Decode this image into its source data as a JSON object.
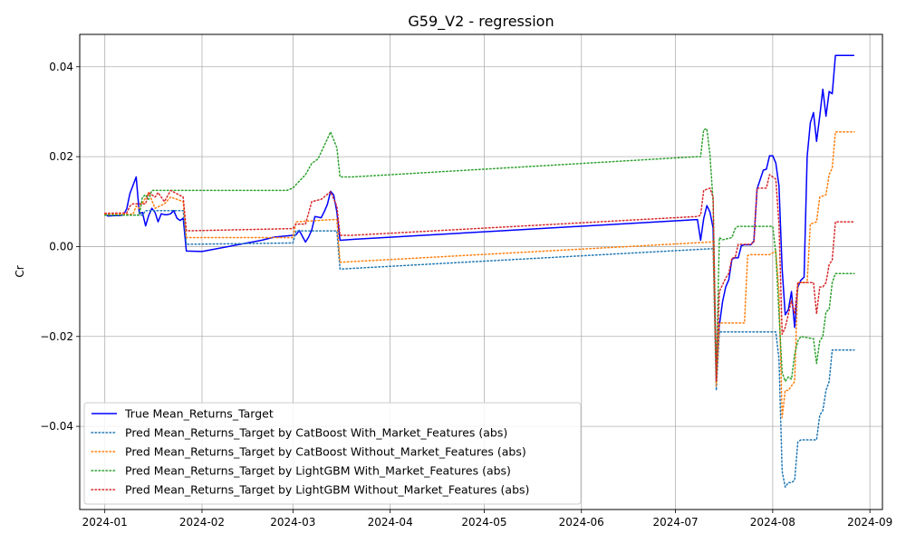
{
  "chart_data": {
    "type": "line",
    "title": "G59_V2 - regression",
    "xlabel": "",
    "ylabel": "Cr",
    "xlim": [
      "2023-12-24",
      "2024-09-05"
    ],
    "ylim": [
      -0.0585,
      0.0472
    ],
    "grid": true,
    "legend_placement": "lower-left",
    "x_ticks": [
      "2024-01",
      "2024-02",
      "2024-03",
      "2024-04",
      "2024-05",
      "2024-06",
      "2024-07",
      "2024-08",
      "2024-09"
    ],
    "y_ticks": [
      -0.04,
      -0.02,
      0.0,
      0.02,
      0.04
    ],
    "y_tick_labels": [
      "−0.04",
      "−0.02",
      "0.00",
      "0.02",
      "0.04"
    ],
    "series": [
      {
        "name": "True Mean_Returns_Target",
        "color": "#0000ff",
        "style": "solid",
        "points": [
          [
            "2024-01-01",
            0.0073
          ],
          [
            "2024-01-02",
            0.0068
          ],
          [
            "2024-01-04",
            0.0069
          ],
          [
            "2024-01-06",
            0.0069
          ],
          [
            "2024-01-07",
            0.0071
          ],
          [
            "2024-01-08",
            0.0084
          ],
          [
            "2024-01-09",
            0.0118
          ],
          [
            "2024-01-10",
            0.0136
          ],
          [
            "2024-01-11",
            0.0155
          ],
          [
            "2024-01-12",
            0.0073
          ],
          [
            "2024-01-13",
            0.0076
          ],
          [
            "2024-01-14",
            0.0046
          ],
          [
            "2024-01-15",
            0.0069
          ],
          [
            "2024-01-16",
            0.0085
          ],
          [
            "2024-01-17",
            0.0076
          ],
          [
            "2024-01-18",
            0.0055
          ],
          [
            "2024-01-19",
            0.0073
          ],
          [
            "2024-01-20",
            0.0071
          ],
          [
            "2024-01-21",
            0.0071
          ],
          [
            "2024-01-22",
            0.0073
          ],
          [
            "2024-01-23",
            0.008
          ],
          [
            "2024-01-24",
            0.0063
          ],
          [
            "2024-01-25",
            0.0058
          ],
          [
            "2024-01-26",
            0.0063
          ],
          [
            "2024-01-27",
            -0.001
          ],
          [
            "2024-02-01",
            -0.0011
          ],
          [
            "2024-02-20",
            0.0014
          ],
          [
            "2024-02-24",
            0.0021
          ],
          [
            "2024-03-01",
            0.0025
          ],
          [
            "2024-03-02",
            0.0026
          ],
          [
            "2024-03-03",
            0.0036
          ],
          [
            "2024-03-05",
            0.001
          ],
          [
            "2024-03-06",
            0.0021
          ],
          [
            "2024-03-07",
            0.0037
          ],
          [
            "2024-03-08",
            0.0067
          ],
          [
            "2024-03-10",
            0.0064
          ],
          [
            "2024-03-11",
            0.0078
          ],
          [
            "2024-03-12",
            0.0094
          ],
          [
            "2024-03-13",
            0.0123
          ],
          [
            "2024-03-14",
            0.0115
          ],
          [
            "2024-03-15",
            0.0077
          ],
          [
            "2024-03-16",
            0.0014
          ],
          [
            "2024-03-20",
            0.0016
          ],
          [
            "2024-07-08",
            0.006
          ],
          [
            "2024-07-09",
            0.0014
          ],
          [
            "2024-07-10",
            0.0062
          ],
          [
            "2024-07-11",
            0.0091
          ],
          [
            "2024-07-12",
            0.0077
          ],
          [
            "2024-07-13",
            0.0041
          ],
          [
            "2024-07-14",
            -0.03
          ],
          [
            "2024-07-15",
            -0.0175
          ],
          [
            "2024-07-16",
            -0.0123
          ],
          [
            "2024-07-17",
            -0.009
          ],
          [
            "2024-07-18",
            -0.0074
          ],
          [
            "2024-07-19",
            -0.0028
          ],
          [
            "2024-07-20",
            -0.0025
          ],
          [
            "2024-07-21",
            -0.0025
          ],
          [
            "2024-07-22",
            0.0002
          ],
          [
            "2024-07-23",
            0.0004
          ],
          [
            "2024-07-25",
            0.0004
          ],
          [
            "2024-07-26",
            0.0012
          ],
          [
            "2024-07-27",
            0.0128
          ],
          [
            "2024-07-29",
            0.017
          ],
          [
            "2024-07-30",
            0.0172
          ],
          [
            "2024-07-31",
            0.0202
          ],
          [
            "2024-08-01",
            0.0202
          ],
          [
            "2024-08-02",
            0.0186
          ],
          [
            "2024-08-03",
            0.0135
          ],
          [
            "2024-08-04",
            -0.005
          ],
          [
            "2024-08-05",
            -0.0152
          ],
          [
            "2024-08-06",
            -0.014
          ],
          [
            "2024-08-07",
            -0.01
          ],
          [
            "2024-08-08",
            -0.018
          ],
          [
            "2024-08-09",
            -0.009
          ],
          [
            "2024-08-10",
            -0.0075
          ],
          [
            "2024-08-11",
            -0.0068
          ],
          [
            "2024-08-12",
            0.02
          ],
          [
            "2024-08-13",
            0.0275
          ],
          [
            "2024-08-14",
            0.0298
          ],
          [
            "2024-08-15",
            0.0234
          ],
          [
            "2024-08-16",
            0.029
          ],
          [
            "2024-08-17",
            0.035
          ],
          [
            "2024-08-18",
            0.029
          ],
          [
            "2024-08-19",
            0.0345
          ],
          [
            "2024-08-20",
            0.034
          ],
          [
            "2024-08-21",
            0.0425
          ],
          [
            "2024-08-27",
            0.0425
          ]
        ]
      },
      {
        "name": "Pred Mean_Returns_Target by CatBoost With_Market_Features (abs)",
        "color": "#1f77b4",
        "style": "dotted",
        "points": [
          [
            "2024-01-01",
            0.007
          ],
          [
            "2024-01-13",
            0.007
          ],
          [
            "2024-01-14",
            0.008
          ],
          [
            "2024-01-26",
            0.008
          ],
          [
            "2024-01-27",
            0.0005
          ],
          [
            "2024-03-01",
            0.0008
          ],
          [
            "2024-03-02",
            0.0035
          ],
          [
            "2024-03-15",
            0.0035
          ],
          [
            "2024-03-16",
            -0.005
          ],
          [
            "2024-07-12",
            -0.0005
          ],
          [
            "2024-07-13",
            -0.0005
          ],
          [
            "2024-07-14",
            -0.032
          ],
          [
            "2024-07-15",
            -0.019
          ],
          [
            "2024-07-31",
            -0.019
          ],
          [
            "2024-08-02",
            -0.019
          ],
          [
            "2024-08-03",
            -0.025
          ],
          [
            "2024-08-04",
            -0.05
          ],
          [
            "2024-08-05",
            -0.0535
          ],
          [
            "2024-08-06",
            -0.0525
          ],
          [
            "2024-08-07",
            -0.0525
          ],
          [
            "2024-08-08",
            -0.052
          ],
          [
            "2024-08-09",
            -0.0435
          ],
          [
            "2024-08-10",
            -0.043
          ],
          [
            "2024-08-15",
            -0.043
          ],
          [
            "2024-08-16",
            -0.0375
          ],
          [
            "2024-08-17",
            -0.0365
          ],
          [
            "2024-08-18",
            -0.032
          ],
          [
            "2024-08-19",
            -0.03
          ],
          [
            "2024-08-20",
            -0.023
          ],
          [
            "2024-08-27",
            -0.023
          ]
        ]
      },
      {
        "name": "Pred Mean_Returns_Target by CatBoost Without_Market_Features (abs)",
        "color": "#ff7f0e",
        "style": "dotted",
        "points": [
          [
            "2024-01-01",
            0.0072
          ],
          [
            "2024-01-10",
            0.0072
          ],
          [
            "2024-01-11",
            0.009
          ],
          [
            "2024-01-12",
            0.0085
          ],
          [
            "2024-01-15",
            0.012
          ],
          [
            "2024-01-17",
            0.0085
          ],
          [
            "2024-01-20",
            0.0095
          ],
          [
            "2024-01-22",
            0.011
          ],
          [
            "2024-01-26",
            0.01
          ],
          [
            "2024-01-27",
            0.002
          ],
          [
            "2024-03-01",
            0.002
          ],
          [
            "2024-03-02",
            0.0055
          ],
          [
            "2024-03-14",
            0.006
          ],
          [
            "2024-03-15",
            0.006
          ],
          [
            "2024-03-16",
            -0.0035
          ],
          [
            "2024-07-12",
            0.001
          ],
          [
            "2024-07-13",
            0.0012
          ],
          [
            "2024-07-14",
            -0.031
          ],
          [
            "2024-07-15",
            -0.017
          ],
          [
            "2024-07-23",
            -0.017
          ],
          [
            "2024-07-24",
            -0.002
          ],
          [
            "2024-07-25",
            -0.0018
          ],
          [
            "2024-07-31",
            -0.0018
          ],
          [
            "2024-08-02",
            -0.001
          ],
          [
            "2024-08-03",
            -0.01
          ],
          [
            "2024-08-04",
            -0.038
          ],
          [
            "2024-08-05",
            -0.032
          ],
          [
            "2024-08-06",
            -0.032
          ],
          [
            "2024-08-07",
            -0.031
          ],
          [
            "2024-08-08",
            -0.03
          ],
          [
            "2024-08-09",
            -0.008
          ],
          [
            "2024-08-12",
            -0.008
          ],
          [
            "2024-08-13",
            0.005
          ],
          [
            "2024-08-15",
            0.0055
          ],
          [
            "2024-08-16",
            0.011
          ],
          [
            "2024-08-18",
            0.0115
          ],
          [
            "2024-08-19",
            0.016
          ],
          [
            "2024-08-20",
            0.0175
          ],
          [
            "2024-08-21",
            0.0255
          ],
          [
            "2024-08-27",
            0.0255
          ]
        ]
      },
      {
        "name": "Pred Mean_Returns_Target by LightGBM With_Market_Features (abs)",
        "color": "#2ca02c",
        "style": "dotted",
        "points": [
          [
            "2024-01-01",
            0.007
          ],
          [
            "2024-01-12",
            0.007
          ],
          [
            "2024-01-13",
            0.011
          ],
          [
            "2024-01-14",
            0.0115
          ],
          [
            "2024-01-15",
            0.0105
          ],
          [
            "2024-01-16",
            0.0125
          ],
          [
            "2024-01-26",
            0.0125
          ],
          [
            "2024-02-28",
            0.0125
          ],
          [
            "2024-03-01",
            0.013
          ],
          [
            "2024-03-02",
            0.0138
          ],
          [
            "2024-03-05",
            0.016
          ],
          [
            "2024-03-07",
            0.0185
          ],
          [
            "2024-03-09",
            0.0195
          ],
          [
            "2024-03-10",
            0.021
          ],
          [
            "2024-03-13",
            0.0255
          ],
          [
            "2024-03-15",
            0.022
          ],
          [
            "2024-03-16",
            0.0155
          ],
          [
            "2024-03-20",
            0.0155
          ],
          [
            "2024-07-08",
            0.02
          ],
          [
            "2024-07-09",
            0.02
          ],
          [
            "2024-07-10",
            0.026
          ],
          [
            "2024-07-11",
            0.0262
          ],
          [
            "2024-07-12",
            0.0205
          ],
          [
            "2024-07-13",
            0.01
          ],
          [
            "2024-07-14",
            -0.029
          ],
          [
            "2024-07-15",
            0.002
          ],
          [
            "2024-07-16",
            0.0015
          ],
          [
            "2024-07-19",
            0.002
          ],
          [
            "2024-07-20",
            0.004
          ],
          [
            "2024-07-21",
            0.0045
          ],
          [
            "2024-07-31",
            0.0045
          ],
          [
            "2024-08-01",
            0.0045
          ],
          [
            "2024-08-02",
            -0.0015
          ],
          [
            "2024-08-03",
            -0.015
          ],
          [
            "2024-08-04",
            -0.028
          ],
          [
            "2024-08-05",
            -0.03
          ],
          [
            "2024-08-06",
            -0.029
          ],
          [
            "2024-08-07",
            -0.0295
          ],
          [
            "2024-08-08",
            -0.024
          ],
          [
            "2024-08-09",
            -0.021
          ],
          [
            "2024-08-10",
            -0.02
          ],
          [
            "2024-08-14",
            -0.0205
          ],
          [
            "2024-08-15",
            -0.026
          ],
          [
            "2024-08-16",
            -0.021
          ],
          [
            "2024-08-17",
            -0.02
          ],
          [
            "2024-08-18",
            -0.0145
          ],
          [
            "2024-08-19",
            -0.014
          ],
          [
            "2024-08-20",
            -0.008
          ],
          [
            "2024-08-21",
            -0.006
          ],
          [
            "2024-08-27",
            -0.006
          ]
        ]
      },
      {
        "name": "Pred Mean_Returns_Target by LightGBM Without_Market_Features (abs)",
        "color": "#d62728",
        "style": "dotted",
        "points": [
          [
            "2024-01-01",
            0.0074
          ],
          [
            "2024-01-08",
            0.0075
          ],
          [
            "2024-01-09",
            0.009
          ],
          [
            "2024-01-10",
            0.0095
          ],
          [
            "2024-01-14",
            0.0095
          ],
          [
            "2024-01-15",
            0.012
          ],
          [
            "2024-01-17",
            0.011
          ],
          [
            "2024-01-18",
            0.012
          ],
          [
            "2024-01-20",
            0.01
          ],
          [
            "2024-01-22",
            0.0125
          ],
          [
            "2024-01-26",
            0.011
          ],
          [
            "2024-01-27",
            0.0035
          ],
          [
            "2024-03-01",
            0.004
          ],
          [
            "2024-03-02",
            0.005
          ],
          [
            "2024-03-05",
            0.005
          ],
          [
            "2024-03-07",
            0.01
          ],
          [
            "2024-03-10",
            0.0105
          ],
          [
            "2024-03-13",
            0.0122
          ],
          [
            "2024-03-15",
            0.009
          ],
          [
            "2024-03-16",
            0.0025
          ],
          [
            "2024-03-20",
            0.0025
          ],
          [
            "2024-07-08",
            0.0067
          ],
          [
            "2024-07-09",
            0.007
          ],
          [
            "2024-07-10",
            0.0125
          ],
          [
            "2024-07-12",
            0.013
          ],
          [
            "2024-07-13",
            0.011
          ],
          [
            "2024-07-14",
            -0.03
          ],
          [
            "2024-07-15",
            -0.01
          ],
          [
            "2024-07-17",
            -0.007
          ],
          [
            "2024-07-18",
            -0.006
          ],
          [
            "2024-07-19",
            -0.0025
          ],
          [
            "2024-07-20",
            -0.0025
          ],
          [
            "2024-07-21",
            0.0005
          ],
          [
            "2024-07-25",
            0.0005
          ],
          [
            "2024-07-26",
            0.001
          ],
          [
            "2024-07-27",
            0.013
          ],
          [
            "2024-07-30",
            0.013
          ],
          [
            "2024-07-31",
            0.016
          ],
          [
            "2024-08-02",
            0.015
          ],
          [
            "2024-08-03",
            0.005
          ],
          [
            "2024-08-04",
            -0.0195
          ],
          [
            "2024-08-05",
            -0.018
          ],
          [
            "2024-08-06",
            -0.015
          ],
          [
            "2024-08-07",
            -0.012
          ],
          [
            "2024-08-08",
            -0.015
          ],
          [
            "2024-08-09",
            -0.008
          ],
          [
            "2024-08-14",
            -0.008
          ],
          [
            "2024-08-15",
            -0.015
          ],
          [
            "2024-08-16",
            -0.009
          ],
          [
            "2024-08-17",
            -0.009
          ],
          [
            "2024-08-18",
            -0.008
          ],
          [
            "2024-08-19",
            -0.004
          ],
          [
            "2024-08-20",
            -0.003
          ],
          [
            "2024-08-21",
            0.0055
          ],
          [
            "2024-08-27",
            0.0055
          ]
        ]
      }
    ]
  }
}
